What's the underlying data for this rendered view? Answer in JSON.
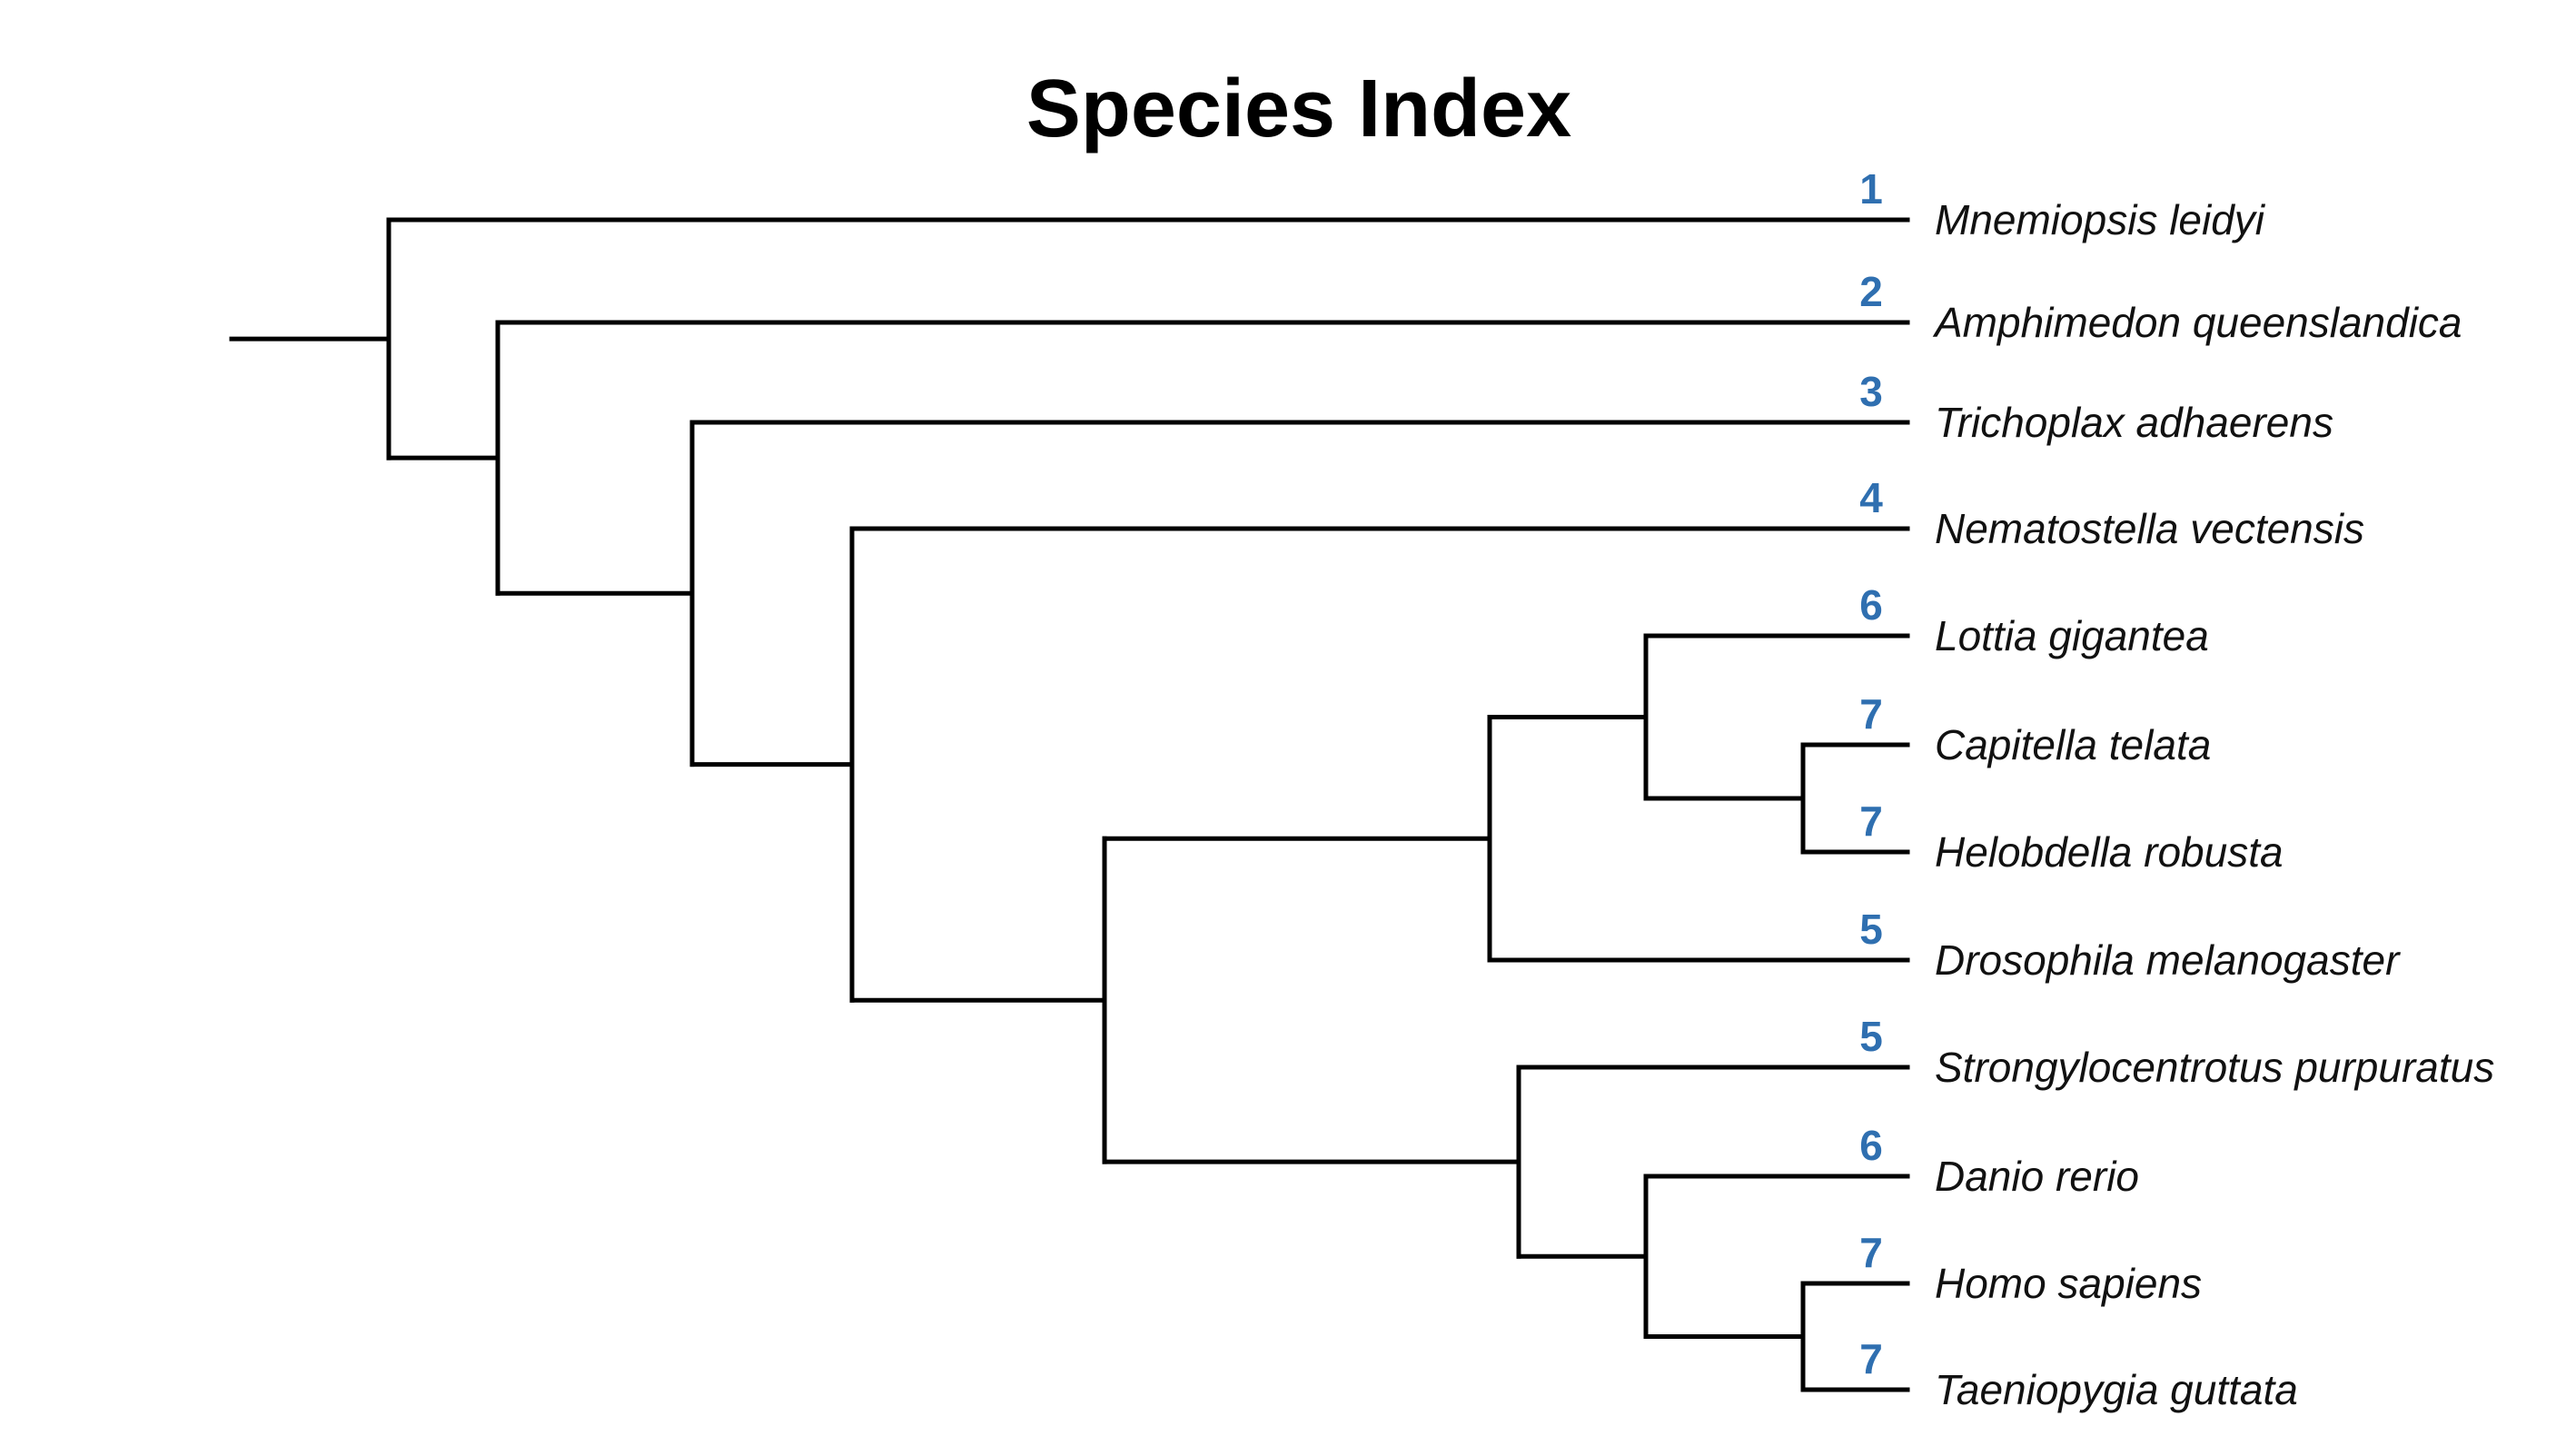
{
  "title": "Species Index",
  "colors": {
    "index": "#2f6fb0",
    "branch": "#000000",
    "text": "#111111"
  },
  "species": [
    {
      "name": "Mnemiopsis leidyi",
      "index": "1"
    },
    {
      "name": "Amphimedon queenslandica",
      "index": "2"
    },
    {
      "name": "Trichoplax adhaerens",
      "index": "3"
    },
    {
      "name": "Nematostella vectensis",
      "index": "4"
    },
    {
      "name": "Lottia gigantea",
      "index": "6"
    },
    {
      "name": "Capitella telata",
      "index": "7"
    },
    {
      "name": "Helobdella robusta",
      "index": "7"
    },
    {
      "name": "Drosophila melanogaster",
      "index": "5"
    },
    {
      "name": "Strongylocentrotus purpuratus",
      "index": "5"
    },
    {
      "name": "Danio rerio",
      "index": "6"
    },
    {
      "name": "Homo sapiens",
      "index": "7"
    },
    {
      "name": "Taeniopygia guttata",
      "index": "7"
    }
  ],
  "tree": {
    "children": [
      {
        "leaf": 0
      },
      {
        "children": [
          {
            "leaf": 1
          },
          {
            "children": [
              {
                "leaf": 2
              },
              {
                "children": [
                  {
                    "leaf": 3
                  },
                  {
                    "children": [
                      {
                        "children": [
                          {
                            "children": [
                              {
                                "leaf": 4
                              },
                              {
                                "children": [
                                  {
                                    "leaf": 5
                                  },
                                  {
                                    "leaf": 6
                                  }
                                ]
                              }
                            ]
                          },
                          {
                            "leaf": 7
                          }
                        ]
                      },
                      {
                        "children": [
                          {
                            "leaf": 8
                          },
                          {
                            "children": [
                              {
                                "leaf": 9
                              },
                              {
                                "children": [
                                  {
                                    "leaf": 10
                                  },
                                  {
                                    "leaf": 11
                                  }
                                ]
                              }
                            ]
                          }
                        ]
                      }
                    ]
                  }
                ]
              }
            ]
          }
        ]
      }
    ]
  }
}
